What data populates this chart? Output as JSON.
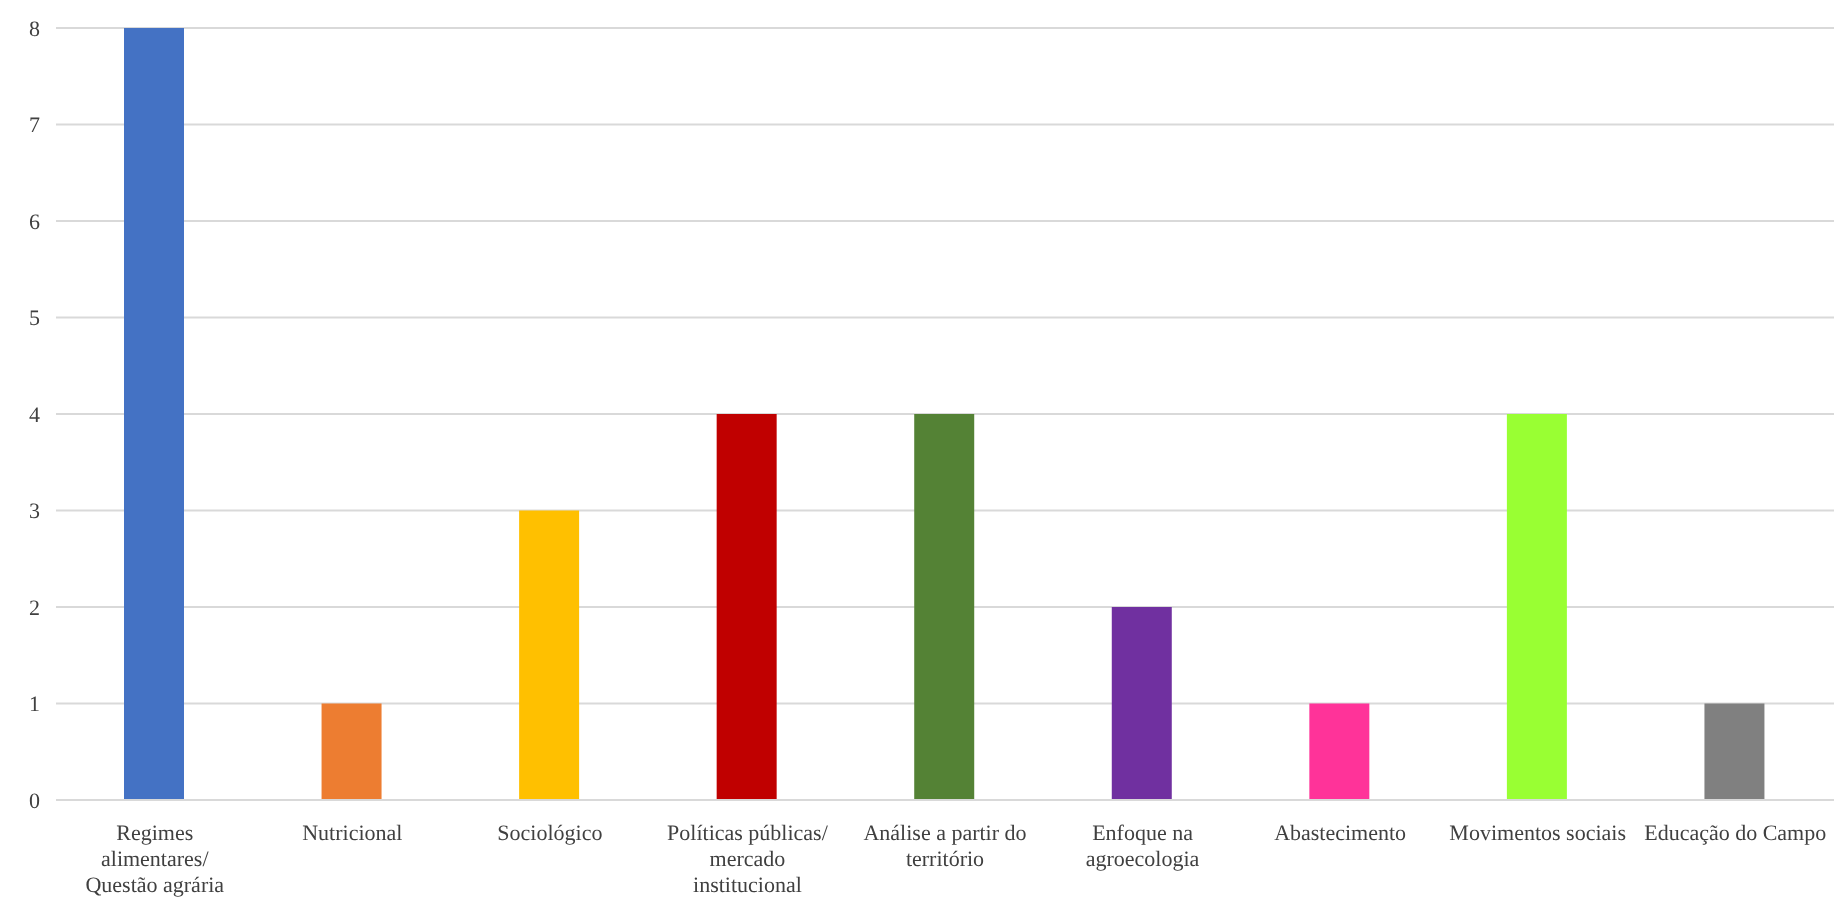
{
  "chart_data": {
    "type": "bar",
    "categories": [
      "Regimes alimentares/ Questão agrária",
      "Nutricional",
      "Sociológico",
      "Políticas públicas/ mercado institucional",
      "Análise a partir do território",
      "Enfoque na agroecologia",
      "Abastecimento",
      "Movimentos sociais",
      "Educação do Campo"
    ],
    "values": [
      8,
      1,
      3,
      4,
      4,
      2,
      1,
      4,
      1
    ],
    "colors": [
      "#4472c4",
      "#ed7d31",
      "#ffc000",
      "#c00000",
      "#548235",
      "#7030a0",
      "#ff3399",
      "#99ff33",
      "#808080"
    ],
    "ylim": [
      0,
      8
    ],
    "yticks": [
      0,
      1,
      2,
      3,
      4,
      5,
      6,
      7,
      8
    ],
    "grid": "y"
  }
}
